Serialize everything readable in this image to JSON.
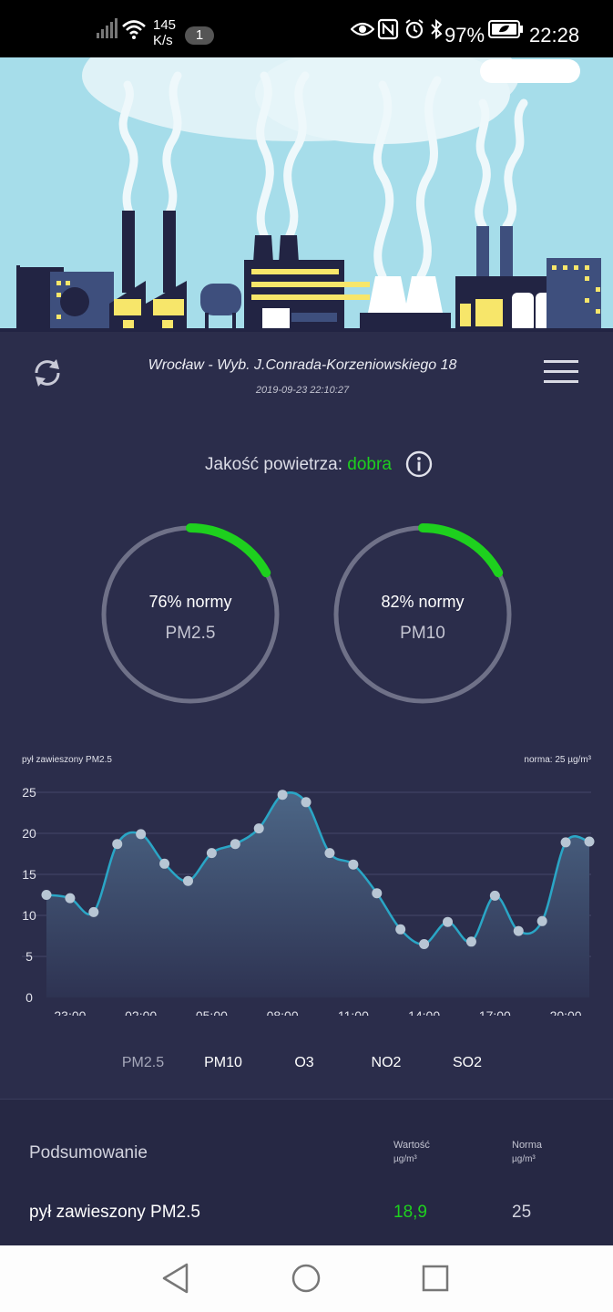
{
  "status_bar": {
    "speed_value": "145",
    "speed_unit": "K/s",
    "notification_count": "1",
    "battery_percent": "97%",
    "time": "22:28"
  },
  "header": {
    "location": "Wrocław - Wyb. J.Conrada-Korzeniowskiego 18",
    "timestamp": "2019-09-23 22:10:27"
  },
  "air_quality": {
    "label": "Jakość powietrza:",
    "value": "dobra",
    "value_color": "#1ed01e"
  },
  "gauges": [
    {
      "percent_text": "76% normy",
      "pollutant": "PM2.5",
      "fraction": 0.17
    },
    {
      "percent_text": "82% normy",
      "pollutant": "PM10",
      "fraction": 0.17
    }
  ],
  "chart_title_left": "pył zawieszony PM2.5",
  "chart_title_right": "norma: 25 µg/m³",
  "chart_data": {
    "type": "area",
    "title": "pył zawieszony PM2.5",
    "subtitle": "norma: 25 µg/m³",
    "ylim": [
      0,
      25
    ],
    "yticks": [
      0,
      5,
      10,
      15,
      20,
      25
    ],
    "xticks": [
      "23:00",
      "02:00",
      "05:00",
      "08:00",
      "11:00",
      "14:00",
      "17:00",
      "20:00"
    ],
    "series": [
      {
        "values": [
          12.5,
          12.1,
          10.4,
          18.7,
          19.9,
          16.3,
          14.2,
          17.6,
          18.7,
          20.6,
          24.7,
          23.8,
          17.6,
          16.2,
          12.7,
          8.3,
          6.5,
          9.2,
          6.8,
          12.4,
          8.1,
          9.3,
          18.9,
          19.0
        ]
      }
    ],
    "grid": true
  },
  "tabs": [
    {
      "label": "PM2.5",
      "active": true
    },
    {
      "label": "PM10",
      "active": false
    },
    {
      "label": "O3",
      "active": false
    },
    {
      "label": "NO2",
      "active": false
    },
    {
      "label": "SO2",
      "active": false
    }
  ],
  "summary": {
    "title": "Podsumowanie",
    "col_value": "Wartość",
    "col_norm": "Norma",
    "unit": "µg/m³",
    "rows": [
      {
        "name": "pył zawieszony PM2.5",
        "value": "18,9",
        "norm": "25"
      }
    ]
  },
  "colors": {
    "background": "#2b2d4b",
    "ring_track": "#6f7188",
    "ring_progress": "#1ed01e",
    "line": "#2aa6c6",
    "sky": "#a6ddea"
  }
}
